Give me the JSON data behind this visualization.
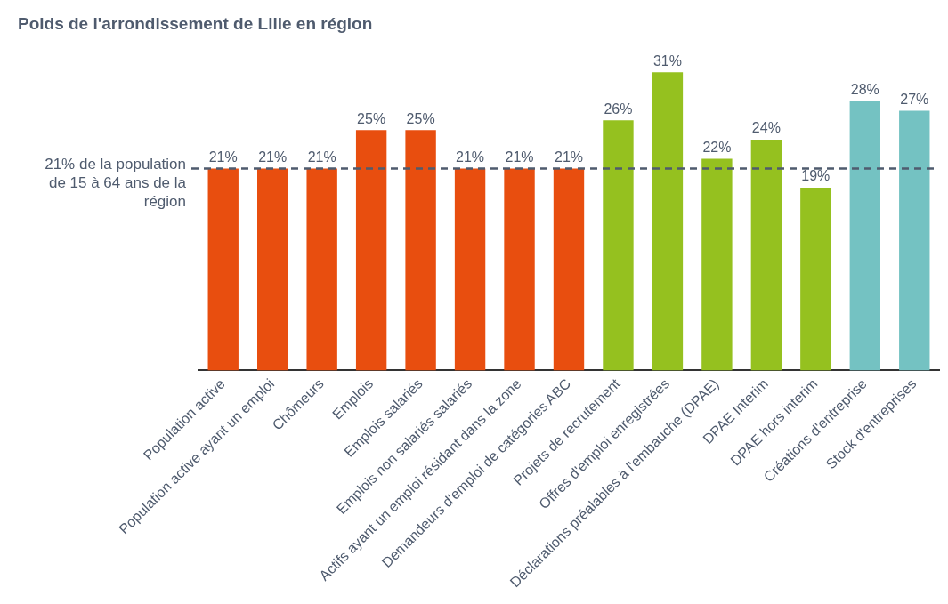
{
  "chart_data": {
    "type": "bar",
    "title": "Poids de l'arrondissement de Lille en région",
    "categories": [
      "Population active",
      "Population active ayant un emploi",
      "Chômeurs",
      "Emplois",
      "Emplois salariés",
      "Emplois non salariés salariés",
      "Actifs ayant un emploi résidant dans la zone",
      "Demandeurs d'emploi de catégories ABC",
      "Projets de recrutement",
      "Offres d'emploi enregistrées",
      "Déclarations préalables à l'embauche (DPAE)",
      "DPAE Interim",
      "DPAE hors interim",
      "Créations d'entreprise",
      "Stock d'entreprises"
    ],
    "values": [
      21,
      21,
      21,
      25,
      25,
      21,
      21,
      21,
      26,
      31,
      22,
      24,
      19,
      28,
      27
    ],
    "colors": [
      "#e84e0f",
      "#e84e0f",
      "#e84e0f",
      "#e84e0f",
      "#e84e0f",
      "#e84e0f",
      "#e84e0f",
      "#e84e0f",
      "#95c11f",
      "#95c11f",
      "#95c11f",
      "#95c11f",
      "#95c11f",
      "#74c2c2",
      "#74c2c2"
    ],
    "value_labels": [
      "21%",
      "21%",
      "21%",
      "25%",
      "25%",
      "21%",
      "21%",
      "21%",
      "26%",
      "31%",
      "22%",
      "24%",
      "19%",
      "28%",
      "27%"
    ],
    "ref_lines": [
      {
        "axis": "y",
        "value": 21,
        "label": "21% de la population de 15 à 64 ans de la région",
        "color": "#4f5b6e",
        "line_style": "dashed"
      }
    ],
    "tick_labels": "x",
    "grid": false,
    "legend": false
  }
}
